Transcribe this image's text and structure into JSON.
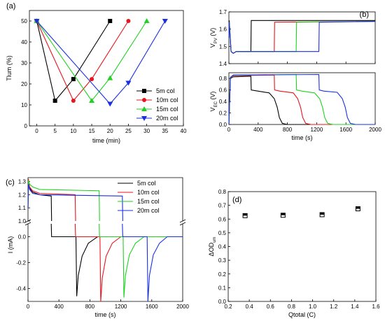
{
  "colors": {
    "5m": "#000000",
    "10m": "#e8141c",
    "15m": "#1fd21f",
    "20m": "#1a2fe0"
  },
  "chart_data": [
    {
      "id": "a",
      "panel_label": "(a)",
      "type": "line",
      "xlabel": "time (min)",
      "ylabel": "Tlum (%)",
      "xlim": [
        -2,
        40
      ],
      "ylim": [
        0,
        55
      ],
      "xticks": [
        "0",
        "5",
        "10",
        "15",
        "20",
        "25",
        "30",
        "35",
        "40"
      ],
      "yticks": [
        "0",
        "10",
        "20",
        "30",
        "40",
        "50"
      ],
      "legend_position": "center-right",
      "series": [
        {
          "name": "5m col",
          "marker": "square",
          "x": [
            0,
            5,
            10,
            20
          ],
          "y": [
            50,
            12,
            22.3,
            50
          ]
        },
        {
          "name": "10m col",
          "marker": "circle",
          "x": [
            0,
            10,
            15,
            25
          ],
          "y": [
            50,
            12,
            22.3,
            50
          ]
        },
        {
          "name": "15m col",
          "marker": "triangle-up",
          "x": [
            0,
            15,
            20,
            30
          ],
          "y": [
            50,
            12,
            22.8,
            50
          ]
        },
        {
          "name": "20m col",
          "marker": "triangle-down",
          "x": [
            0,
            20,
            25,
            35
          ],
          "y": [
            50,
            10.5,
            20.5,
            50
          ]
        }
      ]
    },
    {
      "id": "b",
      "panel_label": "(b)",
      "type": "line",
      "xlabel": "time (s)",
      "xlim": [
        0,
        2000
      ],
      "xticks": [
        "0",
        "400",
        "800",
        "1200",
        "1600",
        "2000"
      ],
      "top": {
        "ylabel": "VPV (V)",
        "ylabel_main": "V",
        "ylabel_sub": "PV",
        "ylabel_unit": " (V)",
        "ylim": [
          1.4,
          1.7
        ],
        "yticks": [
          "1.4",
          "1.5",
          "1.6",
          "1.7"
        ],
        "series": [
          {
            "name": "5m col",
            "x": [
              0,
              5,
              30,
              60,
              100,
              300,
              305,
              2000
            ],
            "y": [
              1.55,
              1.65,
              1.47,
              1.46,
              1.47,
              1.47,
              1.65,
              1.65
            ]
          },
          {
            "name": "10m col",
            "x": [
              0,
              5,
              30,
              60,
              100,
              620,
              625,
              2000
            ],
            "y": [
              1.55,
              1.64,
              1.47,
              1.46,
              1.47,
              1.47,
              1.64,
              1.645
            ]
          },
          {
            "name": "15m col",
            "x": [
              0,
              5,
              30,
              60,
              100,
              920,
              925,
              2000
            ],
            "y": [
              1.55,
              1.64,
              1.47,
              1.46,
              1.47,
              1.47,
              1.64,
              1.645
            ]
          },
          {
            "name": "20m col",
            "x": [
              0,
              5,
              30,
              60,
              100,
              1230,
              1235,
              2000
            ],
            "y": [
              1.55,
              1.64,
              1.47,
              1.46,
              1.47,
              1.47,
              1.64,
              1.645
            ]
          }
        ]
      },
      "bottom": {
        "ylabel": "VEC (V)",
        "ylabel_main": "V",
        "ylabel_sub": "EC",
        "ylabel_unit": " (V)",
        "ylim": [
          0,
          0.9
        ],
        "yticks": [
          "0.0",
          "0.2",
          "0.4",
          "0.6",
          "0.8"
        ],
        "series": [
          {
            "name": "5m col",
            "x": [
              0,
              20,
              60,
              300,
              305,
              400,
              550,
              620,
              660,
              690,
              730,
              800,
              2000
            ],
            "y": [
              0,
              0.8,
              0.83,
              0.84,
              0.6,
              0.58,
              0.55,
              0.45,
              0.3,
              0.12,
              0.02,
              0,
              0
            ]
          },
          {
            "name": "10m col",
            "x": [
              0,
              20,
              60,
              620,
              625,
              700,
              880,
              940,
              980,
              1010,
              1050,
              1120,
              2000
            ],
            "y": [
              0,
              0.82,
              0.85,
              0.86,
              0.6,
              0.58,
              0.55,
              0.45,
              0.3,
              0.12,
              0.02,
              0,
              0
            ]
          },
          {
            "name": "15m col",
            "x": [
              0,
              20,
              60,
              920,
              925,
              1000,
              1170,
              1240,
              1280,
              1310,
              1350,
              1420,
              2000
            ],
            "y": [
              0,
              0.82,
              0.86,
              0.87,
              0.6,
              0.58,
              0.55,
              0.45,
              0.3,
              0.12,
              0.02,
              0,
              0
            ]
          },
          {
            "name": "20m col",
            "x": [
              0,
              20,
              60,
              1230,
              1235,
              1300,
              1480,
              1550,
              1590,
              1620,
              1660,
              1730,
              2000
            ],
            "y": [
              0,
              0.82,
              0.86,
              0.87,
              0.6,
              0.58,
              0.56,
              0.45,
              0.3,
              0.12,
              0.02,
              0,
              0
            ]
          }
        ]
      }
    },
    {
      "id": "c",
      "panel_label": "(c)",
      "type": "line",
      "xlabel": "time (s)",
      "ylabel": "I (mA)",
      "xlim": [
        0,
        2000
      ],
      "xticks": [
        "0",
        "400",
        "800",
        "1200",
        "1600",
        "2000"
      ],
      "legend_position": "top-right",
      "top": {
        "ylim": [
          1.0,
          1.33
        ],
        "yticks": [
          "1.0",
          "1.1",
          "1.2",
          "1.3"
        ],
        "series": [
          {
            "name": "5m col",
            "x": [
              0,
              5,
              20,
              60,
              150,
              300,
              305
            ],
            "y": [
              1.1,
              1.3,
              1.25,
              1.22,
              1.2,
              1.19,
              1.0
            ]
          },
          {
            "name": "10m col",
            "x": [
              0,
              5,
              20,
              60,
              150,
              610,
              615
            ],
            "y": [
              1.1,
              1.32,
              1.26,
              1.23,
              1.21,
              1.2,
              1.0
            ]
          },
          {
            "name": "15m col",
            "x": [
              0,
              5,
              20,
              60,
              150,
              920,
              925
            ],
            "y": [
              1.1,
              1.31,
              1.28,
              1.26,
              1.24,
              1.23,
              1.0
            ]
          },
          {
            "name": "20m col",
            "x": [
              0,
              5,
              20,
              60,
              150,
              1220,
              1225
            ],
            "y": [
              1.1,
              1.28,
              1.24,
              1.21,
              1.2,
              1.19,
              1.0
            ]
          }
        ]
      },
      "bottom": {
        "ylim": [
          -0.5,
          0.1
        ],
        "yticks": [
          "-0.4",
          "-0.2",
          "0.0"
        ],
        "series": [
          {
            "name": "5m col",
            "x": [
              300,
              305,
              620,
              630,
              650,
              700,
              780,
              900,
              2000
            ],
            "y": [
              0.1,
              0,
              0,
              -0.46,
              -0.3,
              -0.15,
              -0.05,
              0,
              0
            ]
          },
          {
            "name": "10m col",
            "x": [
              610,
              615,
              930,
              940,
              960,
              1010,
              1090,
              1200,
              2000
            ],
            "y": [
              0.1,
              0,
              0,
              -0.5,
              -0.32,
              -0.15,
              -0.05,
              0,
              0
            ]
          },
          {
            "name": "15m col",
            "x": [
              920,
              925,
              1230,
              1240,
              1260,
              1310,
              1390,
              1500,
              2000
            ],
            "y": [
              0.1,
              0,
              0,
              -0.47,
              -0.3,
              -0.14,
              -0.05,
              0,
              0
            ]
          },
          {
            "name": "20m col",
            "x": [
              1220,
              1225,
              1540,
              1550,
              1570,
              1620,
              1700,
              1800,
              2000
            ],
            "y": [
              0.1,
              0,
              0,
              -0.5,
              -0.3,
              -0.14,
              -0.05,
              0,
              0
            ]
          }
        ]
      }
    },
    {
      "id": "d",
      "panel_label": "(d)",
      "type": "scatter",
      "xlabel": "Qtotal (C)",
      "ylabel": "ΔODum",
      "ylabel_main": "ΔOD",
      "ylabel_sub": "um",
      "xlim": [
        0.2,
        1.6
      ],
      "ylim": [
        0,
        0.8
      ],
      "xticks": [
        "0.2",
        "0.4",
        "0.6",
        "0.8",
        "1.0",
        "1.2",
        "1.4",
        "1.6"
      ],
      "yticks": [
        "0.0",
        "0.1",
        "0.2",
        "0.3",
        "0.4",
        "0.5",
        "0.6",
        "0.7",
        "0.8"
      ],
      "x": [
        0.36,
        0.72,
        1.09,
        1.43
      ],
      "y": [
        0.625,
        0.628,
        0.632,
        0.675
      ]
    }
  ]
}
